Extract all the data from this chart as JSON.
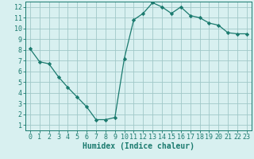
{
  "x": [
    0,
    1,
    2,
    3,
    4,
    5,
    6,
    7,
    8,
    9,
    10,
    11,
    12,
    13,
    14,
    15,
    16,
    17,
    18,
    19,
    20,
    21,
    22,
    23
  ],
  "y": [
    8.1,
    6.9,
    6.7,
    5.5,
    4.5,
    3.6,
    2.7,
    1.5,
    1.5,
    1.7,
    7.2,
    10.8,
    11.4,
    12.4,
    12.0,
    11.4,
    12.0,
    11.2,
    11.0,
    10.5,
    10.3,
    9.6,
    9.5,
    9.5
  ],
  "line_color": "#1a7a6e",
  "marker": "D",
  "marker_size": 2.2,
  "bg_color": "#d8f0f0",
  "grid_color": "#a0c8c8",
  "xlabel": "Humidex (Indice chaleur)",
  "xlim": [
    -0.5,
    23.5
  ],
  "ylim": [
    0.5,
    12.5
  ],
  "xticks": [
    0,
    1,
    2,
    3,
    4,
    5,
    6,
    7,
    8,
    9,
    10,
    11,
    12,
    13,
    14,
    15,
    16,
    17,
    18,
    19,
    20,
    21,
    22,
    23
  ],
  "yticks": [
    1,
    2,
    3,
    4,
    5,
    6,
    7,
    8,
    9,
    10,
    11,
    12
  ],
  "tick_color": "#1a7a6e",
  "label_fontsize": 6.0,
  "xlabel_fontsize": 7.0
}
